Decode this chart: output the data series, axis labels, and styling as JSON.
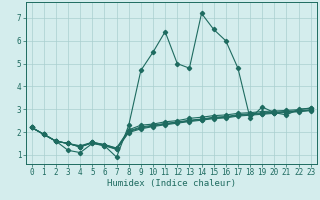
{
  "xlabel": "Humidex (Indice chaleur)",
  "bg_color": "#d4eded",
  "grid_color": "#aacfcf",
  "line_color": "#1e6b60",
  "xlim": [
    -0.5,
    23.5
  ],
  "ylim": [
    0.6,
    7.7
  ],
  "xticks": [
    0,
    1,
    2,
    3,
    4,
    5,
    6,
    7,
    8,
    9,
    10,
    11,
    12,
    13,
    14,
    15,
    16,
    17,
    18,
    19,
    20,
    21,
    22,
    23
  ],
  "yticks": [
    1,
    2,
    3,
    4,
    5,
    6,
    7
  ],
  "series": [
    [
      2.2,
      1.9,
      1.6,
      1.2,
      1.1,
      1.5,
      1.4,
      0.9,
      2.3,
      4.7,
      5.5,
      6.4,
      5.0,
      4.8,
      7.2,
      6.5,
      6.0,
      4.8,
      2.6,
      3.1,
      2.85,
      2.75,
      3.0,
      3.05
    ],
    [
      2.2,
      1.9,
      1.6,
      1.5,
      1.4,
      1.55,
      1.45,
      1.3,
      2.1,
      2.3,
      2.35,
      2.45,
      2.5,
      2.6,
      2.65,
      2.72,
      2.75,
      2.82,
      2.85,
      2.9,
      2.92,
      2.95,
      2.98,
      3.05
    ],
    [
      2.2,
      1.9,
      1.6,
      1.5,
      1.35,
      1.55,
      1.45,
      1.28,
      2.05,
      2.22,
      2.3,
      2.38,
      2.44,
      2.52,
      2.57,
      2.65,
      2.68,
      2.76,
      2.8,
      2.84,
      2.87,
      2.9,
      2.93,
      2.98
    ],
    [
      2.2,
      1.9,
      1.6,
      1.5,
      1.35,
      1.55,
      1.42,
      1.26,
      2.02,
      2.18,
      2.27,
      2.35,
      2.42,
      2.49,
      2.55,
      2.62,
      2.65,
      2.73,
      2.77,
      2.81,
      2.85,
      2.88,
      2.91,
      2.96
    ],
    [
      2.2,
      1.9,
      1.6,
      1.5,
      1.35,
      1.52,
      1.4,
      1.24,
      1.98,
      2.14,
      2.24,
      2.32,
      2.39,
      2.46,
      2.52,
      2.59,
      2.62,
      2.7,
      2.74,
      2.78,
      2.82,
      2.86,
      2.89,
      2.94
    ]
  ],
  "markersize": 2.2,
  "linewidth": 0.8,
  "tick_fontsize": 5.5,
  "xlabel_fontsize": 6.5
}
